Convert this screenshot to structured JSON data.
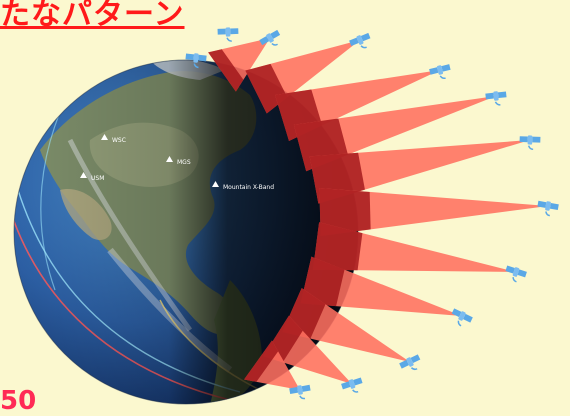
{
  "title": "たなパターン",
  "corner_text": "50",
  "map_labels": [
    "WSC",
    "MGS",
    "Mountain X-Band",
    "USM"
  ],
  "colors": {
    "background": "#fbf8cf",
    "title": "#ff1a1a",
    "beam": "#ff7060",
    "beam_overlay": "#9a0d13",
    "satellite": "#5aa8e6"
  },
  "icons": [
    "satellite-icon",
    "earth-globe",
    "ground-station-icon"
  ]
}
